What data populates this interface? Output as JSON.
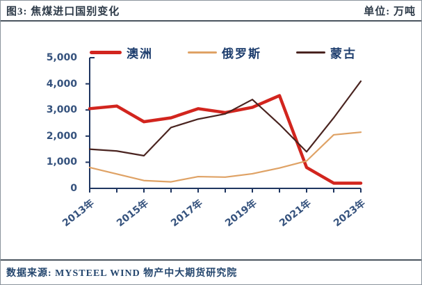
{
  "header": {
    "title": "图3: 焦煤进口国别变化",
    "unit": "单位: 万吨"
  },
  "footer": {
    "source": "数据来源: MYSTEEL WIND 物产中大期货研究院"
  },
  "colors": {
    "axis": "#1e3560",
    "tick_label": "#35527d",
    "legend_text": "#1e3e6e",
    "australia_red": "#d2251e",
    "russia_orange": "#dfa265",
    "mongolia_maroon": "#4a2420"
  },
  "chart_data": {
    "type": "line",
    "categories": [
      "2013年",
      "2014年",
      "2015年",
      "2016年",
      "2017年",
      "2018年",
      "2019年",
      "2020年",
      "2021年",
      "2022年",
      "2023年"
    ],
    "series": [
      {
        "name": "澳洲",
        "color": "#d2251e",
        "stroke_width": 4.5,
        "values": [
          3050,
          3150,
          2550,
          2700,
          3050,
          2900,
          3100,
          3550,
          800,
          200,
          200
        ]
      },
      {
        "name": "俄罗斯",
        "color": "#dfa265",
        "stroke_width": 2.2,
        "values": [
          800,
          550,
          300,
          250,
          450,
          430,
          560,
          780,
          1050,
          2050,
          2150
        ]
      },
      {
        "name": "蒙古",
        "color": "#4a2420",
        "stroke_width": 2.2,
        "values": [
          1500,
          1430,
          1250,
          2330,
          2650,
          2850,
          3400,
          2450,
          1400,
          2700,
          4100
        ]
      }
    ],
    "title": "焦煤进口国别变化",
    "xlabel": "",
    "ylabel": "万吨",
    "ylim": [
      0,
      5000
    ],
    "yticks": [
      0,
      1000,
      2000,
      3000,
      4000,
      5000
    ],
    "ytick_labels": [
      "0",
      "1,000",
      "2,000",
      "3,000",
      "4,000",
      "5,000"
    ],
    "xtick_labels": [
      "2013年",
      "2015年",
      "2017年",
      "2019年",
      "2021年",
      "2023年"
    ],
    "grid": false,
    "legend_position": "top"
  }
}
